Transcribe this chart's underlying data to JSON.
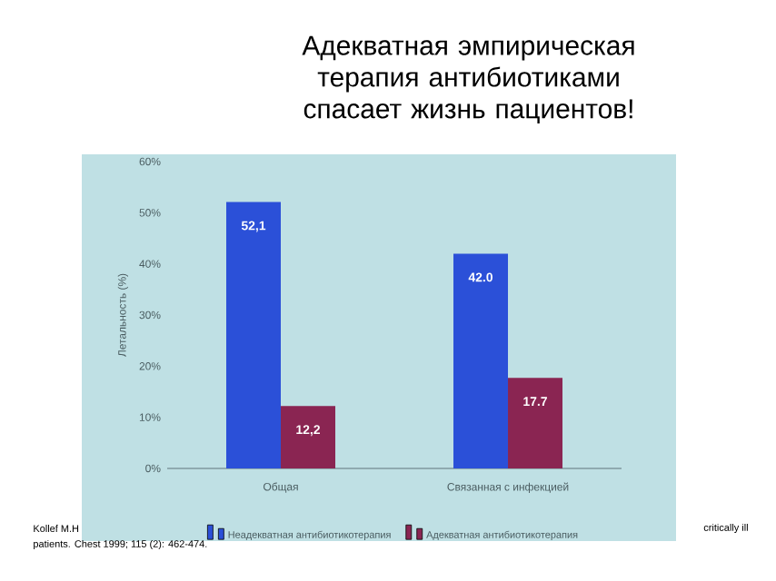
{
  "chart_data": {
    "type": "bar",
    "title": "Адекватная эмпирическая терапия антибиотиками спасает жизнь пациентов!",
    "categories": [
      "Общая",
      "Связанная с инфекцией"
    ],
    "ylabel": "Летальность (%)",
    "series": [
      {
        "name": "Неадекватная антибиотикотерапия",
        "color": "#2b50d8",
        "values": [
          52.1,
          42.0
        ],
        "value_labels": [
          "52,1",
          "42.0"
        ]
      },
      {
        "name": "Адекватная антибиотикотерапия",
        "color": "#8a2552",
        "values": [
          12.2,
          17.7
        ],
        "value_labels": [
          "12,2",
          "17.7"
        ]
      }
    ],
    "ylim": [
      0,
      60
    ],
    "yticks": [
      {
        "value": 0,
        "label": "0%"
      },
      {
        "value": 10,
        "label": "10%"
      },
      {
        "value": 20,
        "label": "20%"
      },
      {
        "value": 30,
        "label": "30%"
      },
      {
        "value": 40,
        "label": "40%"
      },
      {
        "value": 50,
        "label": "50%"
      },
      {
        "value": 60,
        "label": "60%"
      }
    ],
    "legend": "bottom",
    "annotations": [
      "Kollef M.H",
      "critically ill",
      "patients. Chest 1999; 115 (2): 462-474."
    ]
  }
}
